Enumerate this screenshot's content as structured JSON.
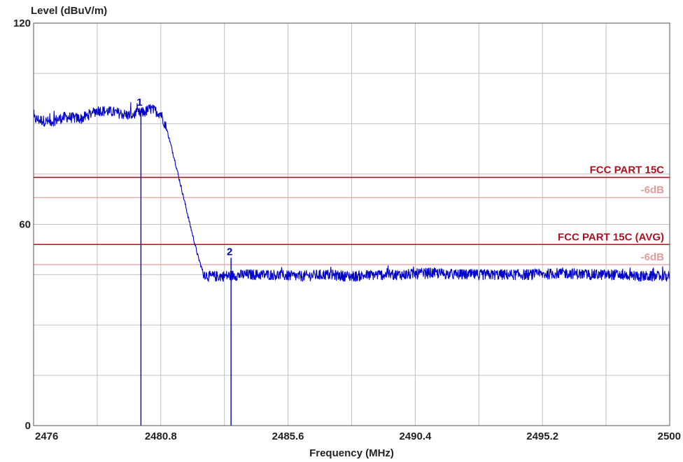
{
  "chart_data": {
    "type": "line",
    "title": "",
    "ylabel": "Level (dBuV/m)",
    "xlabel": "Frequency (MHz)",
    "xlim": [
      2476,
      2500
    ],
    "ylim": [
      0,
      120
    ],
    "x_ticks": [
      "2476",
      "2480.8",
      "2485.6",
      "2490.4",
      "2495.2",
      "2500"
    ],
    "y_ticks": [
      "0",
      "60",
      "120"
    ],
    "grid": true,
    "colors": {
      "trace": "#0000cc",
      "limit": "#b01020",
      "limit_margin": "#e89aa0",
      "grid": "#c0c0c0"
    },
    "series": [
      {
        "name": "",
        "points": [
          [
            2476.0,
            91.5
          ],
          [
            2476.6,
            90.5
          ],
          [
            2477.2,
            92.0
          ],
          [
            2477.8,
            91.5
          ],
          [
            2478.4,
            94.0
          ],
          [
            2479.0,
            93.5
          ],
          [
            2479.6,
            92.5
          ],
          [
            2480.2,
            93.5
          ],
          [
            2480.4,
            94.5
          ],
          [
            2480.8,
            93.0
          ],
          [
            2481.0,
            89.0
          ],
          [
            2481.3,
            80.0
          ],
          [
            2481.6,
            70.0
          ],
          [
            2481.9,
            60.0
          ],
          [
            2482.2,
            50.5
          ],
          [
            2482.4,
            45.5
          ],
          [
            2482.6,
            44.5
          ],
          [
            2483.0,
            44.5
          ],
          [
            2484.0,
            45.0
          ],
          [
            2485.0,
            45.0
          ],
          [
            2486.0,
            44.5
          ],
          [
            2487.0,
            45.0
          ],
          [
            2488.0,
            44.5
          ],
          [
            2489.0,
            45.0
          ],
          [
            2490.0,
            45.0
          ],
          [
            2491.0,
            45.5
          ],
          [
            2492.0,
            45.0
          ],
          [
            2493.0,
            45.0
          ],
          [
            2494.0,
            45.0
          ],
          [
            2495.0,
            45.0
          ],
          [
            2496.0,
            45.5
          ],
          [
            2497.0,
            45.0
          ],
          [
            2498.0,
            45.0
          ],
          [
            2499.0,
            44.5
          ],
          [
            2500.0,
            44.5
          ]
        ]
      }
    ],
    "markers": [
      {
        "label": "1",
        "x": 2480.05,
        "y": 94.5
      },
      {
        "label": "2",
        "x": 2483.45,
        "y": 50.0
      }
    ],
    "limit_lines": [
      {
        "name": "FCC PART 15C",
        "y": 74,
        "kind": "limit"
      },
      {
        "name": "-6dB",
        "y": 68,
        "kind": "margin"
      },
      {
        "name": "FCC PART 15C (AVG)",
        "y": 54,
        "kind": "limit"
      },
      {
        "name": "-6dB",
        "y": 48,
        "kind": "margin"
      }
    ]
  }
}
